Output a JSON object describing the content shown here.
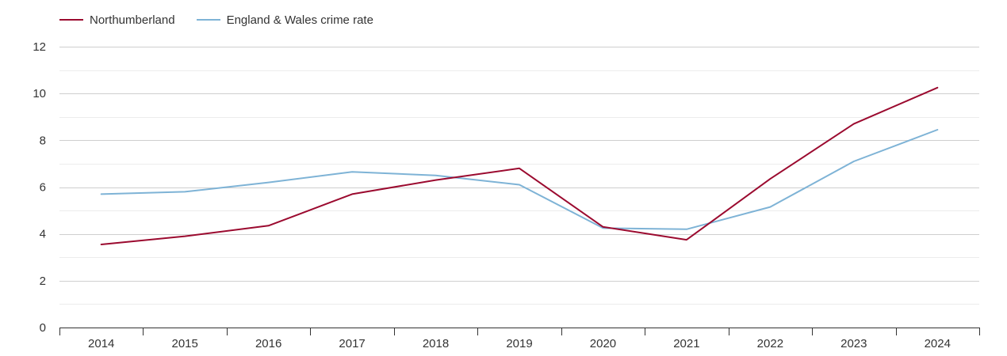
{
  "colors": {
    "northumberland": "#9b0a2f",
    "england_wales": "#7eb3d6",
    "grid": "#d9d9d9",
    "axis": "#333333",
    "text": "#333333"
  },
  "chart_data": {
    "type": "line",
    "title": "",
    "xlabel": "",
    "ylabel": "",
    "categories": [
      "2014",
      "2015",
      "2016",
      "2017",
      "2018",
      "2019",
      "2020",
      "2021",
      "2022",
      "2023",
      "2024"
    ],
    "ylim": [
      0,
      12
    ],
    "yticks": [
      "0",
      "2",
      "4",
      "6",
      "8",
      "10",
      "12"
    ],
    "grid": true,
    "legend": "top-left",
    "series": [
      {
        "name": "Northumberland",
        "color": "#9b0a2f",
        "values": [
          3.55,
          3.9,
          4.35,
          5.7,
          6.3,
          6.8,
          4.3,
          3.75,
          6.35,
          8.7,
          10.25
        ]
      },
      {
        "name": "England & Wales crime rate",
        "color": "#7eb3d6",
        "values": [
          5.7,
          5.8,
          6.2,
          6.65,
          6.5,
          6.1,
          4.25,
          4.2,
          5.15,
          7.1,
          8.45
        ]
      }
    ]
  }
}
